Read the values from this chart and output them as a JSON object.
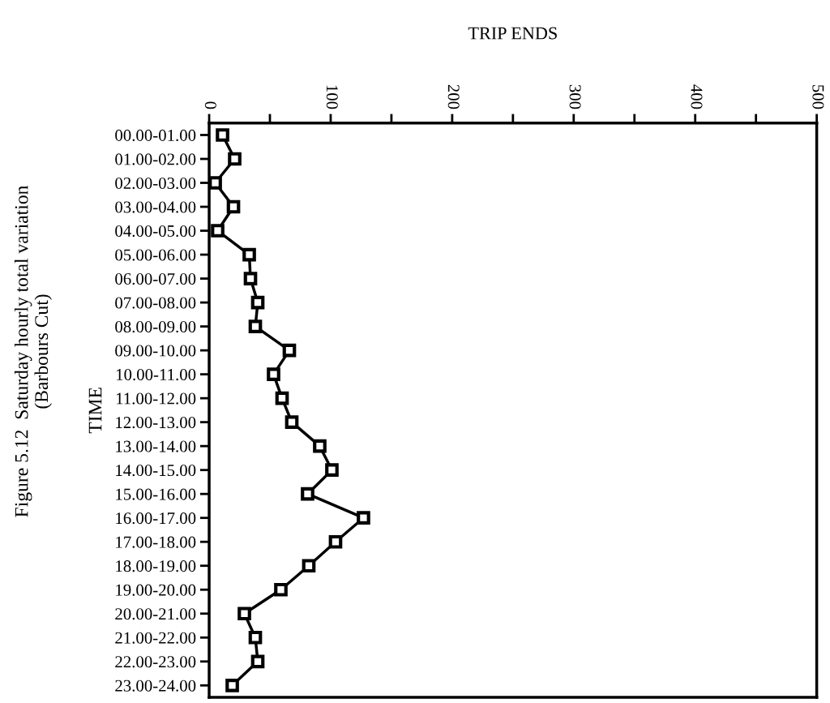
{
  "chart_data": {
    "type": "line",
    "orientation": "horizontal",
    "xlabel": "TRIP ENDS",
    "ylabel": "TIME",
    "annotations": [
      "Figure 5.12  Saturday hourly total variation",
      "(Barbours Cut)"
    ],
    "categories": [
      "00.00-01.00",
      "01.00-02.00",
      "02.00-03.00",
      "03.00-04.00",
      "04.00-05.00",
      "05.00-06.00",
      "06.00-07.00",
      "07.00-08.00",
      "08.00-09.00",
      "09.00-10.00",
      "10.00-11.00",
      "11.00-12.00",
      "12.00-13.00",
      "13.00-14.00",
      "14.00-15.00",
      "15.00-16.00",
      "16.00-17.00",
      "17.00-18.00",
      "18.00-19.00",
      "19.00-20.00",
      "20.00-21.00",
      "21.00-22.00",
      "22.00-23.00",
      "23.00-24.00"
    ],
    "series": [
      {
        "color": "#000000",
        "values": [
          11,
          21,
          5,
          20,
          7,
          33,
          34,
          40,
          38,
          66,
          53,
          60,
          68,
          91,
          101,
          81,
          127,
          104,
          82,
          59,
          29,
          38,
          40,
          19
        ]
      }
    ],
    "xlim": [
      0,
      500
    ],
    "xticks": [
      0,
      {
        "value": 50,
        "label": null
      },
      100,
      {
        "value": 150,
        "label": null
      },
      200,
      {
        "value": 250,
        "label": null
      },
      300,
      {
        "value": 350,
        "label": null
      },
      400,
      {
        "value": 450,
        "label": null
      },
      500
    ],
    "marker": "square",
    "line_style": "solid",
    "grid": false,
    "legend": false
  }
}
